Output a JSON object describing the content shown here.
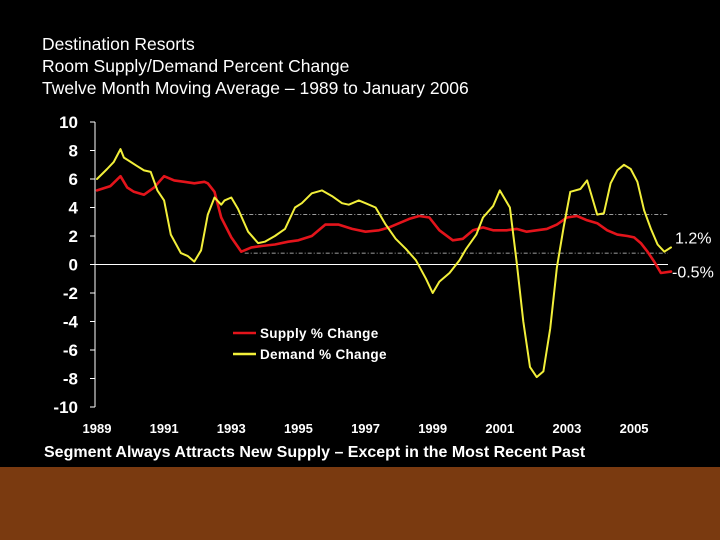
{
  "title_lines": [
    "Destination Resorts",
    "Room Supply/Demand Percent Change",
    "Twelve Month Moving Average – 1989 to January 2006"
  ],
  "caption": "Segment Always Attracts New Supply – Except in the Most Recent Past",
  "colors": {
    "background": "#000000",
    "supply": "#e3141b",
    "demand": "#f2ef3a",
    "text": "#ffffff",
    "footer": "#7a3a10"
  },
  "chart_data": {
    "type": "line",
    "title": "Room Supply/Demand Percent Change",
    "xlabel": "",
    "ylabel": "",
    "xlim": [
      1989.0,
      2006.1
    ],
    "ylim": [
      -10,
      10
    ],
    "yticks": [
      "10",
      "8",
      "6",
      "4",
      "2",
      "0",
      "-2",
      "-4",
      "-6",
      "-8",
      "-10"
    ],
    "xticks": [
      {
        "label": "1989",
        "value": 1989
      },
      {
        "label": "1991",
        "value": 1991
      },
      {
        "label": "1993",
        "value": 1993
      },
      {
        "label": "1995",
        "value": 1995
      },
      {
        "label": "1997",
        "value": 1997
      },
      {
        "label": "1999",
        "value": 1999
      },
      {
        "label": "2001",
        "value": 2001
      },
      {
        "label": "2003",
        "value": 2003
      },
      {
        "label": "2005",
        "value": 2005
      }
    ],
    "reference_lines": [
      {
        "y": 3.5
      },
      {
        "y": 0.8
      }
    ],
    "annotations": [
      {
        "text": "1.2%",
        "y": 1.9
      },
      {
        "text": "-0.5%",
        "y": -0.5
      }
    ],
    "legend": {
      "position": "lower-middle",
      "entries": [
        "Supply % Change",
        "Demand % Change"
      ]
    },
    "series": [
      {
        "name": "Supply % Change",
        "color": "#e3141b",
        "x": [
          1989.0,
          1989.4,
          1989.7,
          1989.9,
          1990.1,
          1990.4,
          1990.7,
          1991.0,
          1991.3,
          1991.6,
          1991.9,
          1992.2,
          1992.3,
          1992.5,
          1992.7,
          1993.0,
          1993.3,
          1993.6,
          1993.9,
          1994.3,
          1994.7,
          1995.0,
          1995.4,
          1995.8,
          1996.2,
          1996.6,
          1997.0,
          1997.4,
          1997.7,
          1998.0,
          1998.3,
          1998.6,
          1998.9,
          1999.2,
          1999.6,
          1999.9,
          2000.2,
          2000.5,
          2000.8,
          2001.2,
          2001.5,
          2001.8,
          2002.1,
          2002.4,
          2002.7,
          2003.0,
          2003.3,
          2003.6,
          2003.9,
          2004.2,
          2004.5,
          2004.8,
          2005.0,
          2005.2,
          2005.4,
          2005.6,
          2005.8,
          2006.1
        ],
        "values": [
          5.2,
          5.5,
          6.2,
          5.4,
          5.1,
          4.9,
          5.4,
          6.2,
          5.9,
          5.8,
          5.7,
          5.8,
          5.7,
          5.1,
          3.3,
          1.9,
          0.9,
          1.2,
          1.3,
          1.4,
          1.6,
          1.7,
          2.0,
          2.8,
          2.8,
          2.5,
          2.3,
          2.4,
          2.6,
          2.9,
          3.2,
          3.4,
          3.3,
          2.4,
          1.7,
          1.8,
          2.4,
          2.6,
          2.4,
          2.4,
          2.5,
          2.3,
          2.4,
          2.5,
          2.8,
          3.3,
          3.4,
          3.1,
          2.9,
          2.4,
          2.1,
          2.0,
          1.9,
          1.5,
          0.9,
          0.2,
          -0.6,
          -0.5
        ]
      },
      {
        "name": "Demand % Change",
        "color": "#f2ef3a",
        "x": [
          1989.0,
          1989.3,
          1989.5,
          1989.7,
          1989.8,
          1990.0,
          1990.2,
          1990.4,
          1990.6,
          1990.8,
          1991.0,
          1991.2,
          1991.5,
          1991.7,
          1991.9,
          1992.1,
          1992.3,
          1992.5,
          1992.7,
          1992.8,
          1993.0,
          1993.2,
          1993.5,
          1993.8,
          1994.0,
          1994.3,
          1994.6,
          1994.9,
          1995.1,
          1995.4,
          1995.7,
          1996.0,
          1996.3,
          1996.5,
          1996.8,
          1997.0,
          1997.3,
          1997.6,
          1997.9,
          1998.2,
          1998.5,
          1998.8,
          1999.0,
          1999.2,
          1999.5,
          1999.8,
          2000.0,
          2000.3,
          2000.5,
          2000.8,
          2001.0,
          2001.3,
          2001.5,
          2001.7,
          2001.9,
          2002.1,
          2002.3,
          2002.5,
          2002.7,
          2002.9,
          2003.1,
          2003.4,
          2003.6,
          2003.9,
          2004.1,
          2004.3,
          2004.5,
          2004.7,
          2004.9,
          2005.1,
          2005.3,
          2005.5,
          2005.7,
          2005.9,
          2006.1
        ],
        "values": [
          6.0,
          6.7,
          7.2,
          8.1,
          7.5,
          7.2,
          6.9,
          6.6,
          6.5,
          5.2,
          4.5,
          2.1,
          0.8,
          0.6,
          0.2,
          1.0,
          3.5,
          4.7,
          4.2,
          4.5,
          4.7,
          3.9,
          2.3,
          1.5,
          1.6,
          2.0,
          2.5,
          4.0,
          4.3,
          5.0,
          5.2,
          4.8,
          4.3,
          4.2,
          4.5,
          4.3,
          4.0,
          2.8,
          1.8,
          1.1,
          0.3,
          -1.0,
          -2.0,
          -1.2,
          -0.6,
          0.3,
          1.1,
          2.1,
          3.3,
          4.1,
          5.2,
          4.0,
          0.2,
          -4.0,
          -7.2,
          -7.9,
          -7.5,
          -4.5,
          -0.2,
          2.6,
          5.1,
          5.3,
          5.9,
          3.5,
          3.6,
          5.7,
          6.6,
          7.0,
          6.7,
          5.8,
          3.8,
          2.5,
          1.4,
          0.9,
          1.2
        ]
      }
    ]
  }
}
